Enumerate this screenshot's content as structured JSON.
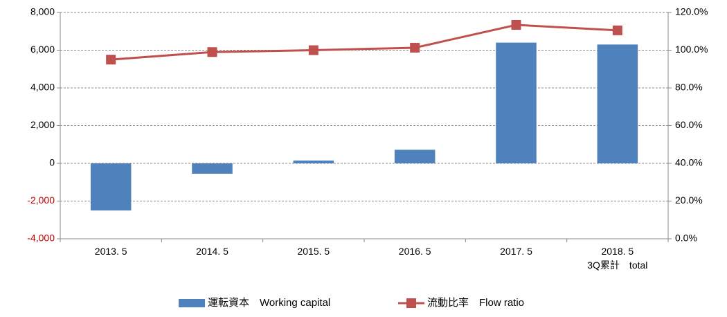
{
  "chart_data": {
    "type": "bar_line",
    "categories": [
      "2013. 5",
      "2014. 5",
      "2015. 5",
      "2016. 5",
      "2017. 5",
      "2018. 5\n3Q累計　total"
    ],
    "series": [
      {
        "name": "運転資本　Working capital",
        "type": "bar",
        "color": "#4f81bd",
        "values": [
          -2500,
          -550,
          150,
          720,
          6400,
          6300
        ]
      },
      {
        "name": "流動比率　Flow ratio",
        "type": "line",
        "axis": "y2",
        "color": "#c0504d",
        "values": [
          95,
          99,
          100,
          101.3,
          113.4,
          110.5
        ]
      }
    ],
    "ylim": [
      -4000,
      8000
    ],
    "yticks": [
      {
        "value": -4000,
        "label": "-4,000"
      },
      {
        "value": -2000,
        "label": "-2,000"
      },
      0,
      {
        "value": 2000,
        "label": "2,000"
      },
      {
        "value": 4000,
        "label": "4,000"
      },
      {
        "value": 6000,
        "label": "6,000"
      },
      {
        "value": 8000,
        "label": "8,000"
      }
    ],
    "y2lim": [
      0,
      120
    ],
    "y2ticks": [
      {
        "value": 0,
        "label": "0.0%"
      },
      {
        "value": 20,
        "label": "20.0%"
      },
      {
        "value": 40,
        "label": "40.0%"
      },
      {
        "value": 60,
        "label": "60.0%"
      },
      {
        "value": 80,
        "label": "80.0%"
      },
      {
        "value": 100,
        "label": "100.0%"
      },
      {
        "value": 120,
        "label": "120.0%"
      }
    ],
    "grid": true,
    "legend": "bottom"
  }
}
